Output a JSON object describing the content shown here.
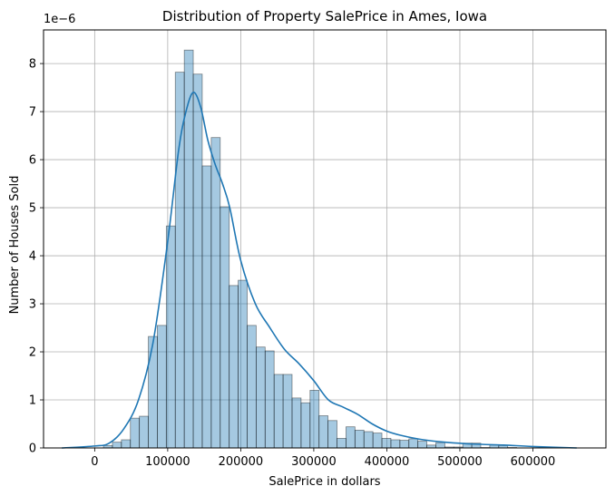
{
  "chart_data": {
    "type": "histogram",
    "title": "Distribution of Property SalePrice in Ames, Iowa",
    "xlabel": "SalePrice in dollars",
    "ylabel": "Number of Houses Sold",
    "offset_text": "1e−6",
    "xlim": [
      -70000,
      700000
    ],
    "ylim": [
      0,
      8.7e-06
    ],
    "x_ticks": [
      0,
      100000,
      200000,
      300000,
      400000,
      500000,
      600000
    ],
    "x_tick_labels": [
      "0",
      "100000",
      "200000",
      "300000",
      "400000",
      "500000",
      "600000"
    ],
    "y_ticks": [
      0,
      1e-06,
      2e-06,
      3e-06,
      4e-06,
      5e-06,
      6e-06,
      7e-06,
      8e-06
    ],
    "y_tick_labels": [
      "0",
      "1",
      "2",
      "3",
      "4",
      "5",
      "6",
      "7",
      "8"
    ],
    "grid": true,
    "bar_color": "#1f77b4",
    "bar_alpha": 0.4,
    "bar_edge": "#000000",
    "kde_color": "#1f77b4",
    "bins": {
      "start": 12000,
      "width": 12300,
      "values": [
        0.05,
        0.12,
        0.17,
        0.62,
        0.66,
        2.32,
        2.55,
        4.62,
        7.82,
        8.28,
        7.78,
        5.87,
        6.46,
        5.02,
        3.38,
        3.49,
        2.55,
        2.1,
        2.02,
        1.53,
        1.53,
        1.04,
        0.94,
        1.2,
        0.67,
        0.57,
        0.2,
        0.44,
        0.37,
        0.34,
        0.31,
        0.2,
        0.17,
        0.16,
        0.19,
        0.14,
        0.06,
        0.11,
        0.02,
        0.02,
        0.1,
        0.1,
        0.01,
        0.06,
        0.05,
        0.01
      ],
      "scale": 1e-06
    },
    "kde": {
      "x": [
        -45000,
        0,
        20000,
        40000,
        60000,
        80000,
        100000,
        115000,
        125000,
        135000,
        145000,
        155000,
        165000,
        175000,
        185000,
        200000,
        220000,
        240000,
        260000,
        280000,
        300000,
        320000,
        340000,
        360000,
        380000,
        400000,
        420000,
        450000,
        480000,
        520000,
        560000,
        600000,
        660000
      ],
      "y": [
        0.0,
        0.04,
        0.1,
        0.4,
        1.0,
        2.2,
        4.3,
        6.2,
        7.0,
        7.4,
        7.1,
        6.4,
        5.9,
        5.5,
        5.0,
        3.9,
        3.0,
        2.5,
        2.05,
        1.75,
        1.4,
        1.0,
        0.85,
        0.7,
        0.5,
        0.35,
        0.26,
        0.17,
        0.12,
        0.08,
        0.06,
        0.03,
        0.0
      ],
      "scale": 1e-06
    }
  }
}
